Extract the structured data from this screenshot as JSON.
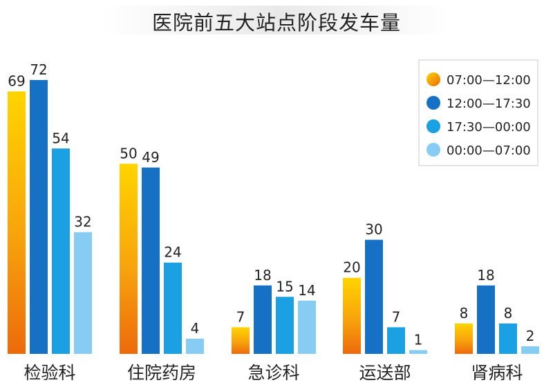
{
  "chart_data": {
    "type": "bar",
    "title": "医院前五大站点阶段发车量",
    "categories": [
      "检验科",
      "住院药房",
      "急诊科",
      "运送部",
      "肾病科"
    ],
    "series": [
      {
        "name": "07:00—12:00",
        "values": [
          69,
          50,
          7,
          20,
          8
        ],
        "color": "#f5a10a"
      },
      {
        "name": "12:00—17:30",
        "values": [
          72,
          49,
          18,
          30,
          18
        ],
        "color": "#1670c4"
      },
      {
        "name": "17:30—00:00",
        "values": [
          54,
          24,
          15,
          7,
          8
        ],
        "color": "#1ba0e3"
      },
      {
        "name": "00:00—07:00",
        "values": [
          32,
          4,
          14,
          1,
          2
        ],
        "color": "#87cdf3"
      }
    ],
    "xlabel": "",
    "ylabel": "",
    "ylim": [
      0,
      72
    ],
    "grid": false,
    "legend_position": "top-right"
  }
}
